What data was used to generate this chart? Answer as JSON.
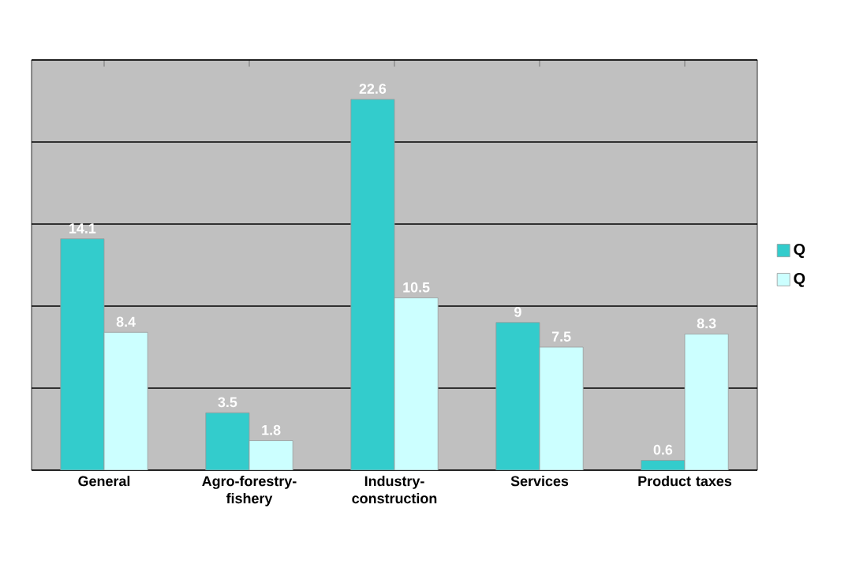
{
  "chart_data": {
    "type": "bar",
    "categories": [
      "General",
      "Agro-forestry-fishery",
      "Industry-construction",
      "Services",
      "Product taxes"
    ],
    "series": [
      {
        "name": "Q",
        "color": "#33cccc",
        "values": [
          14.1,
          3.5,
          22.6,
          9,
          0.6
        ]
      },
      {
        "name": "Q",
        "color": "#ccffff",
        "values": [
          8.4,
          1.8,
          10.5,
          7.5,
          8.3
        ]
      }
    ],
    "ylim": [
      0,
      25
    ],
    "yticks": [
      {
        "value": 0,
        "label": null
      },
      {
        "value": 5,
        "label": null
      },
      {
        "value": 10,
        "label": null
      },
      {
        "value": 15,
        "label": null
      },
      {
        "value": 20,
        "label": null
      },
      {
        "value": 25,
        "label": null
      }
    ],
    "grid": "y",
    "legend": "right",
    "data_labels": true
  }
}
